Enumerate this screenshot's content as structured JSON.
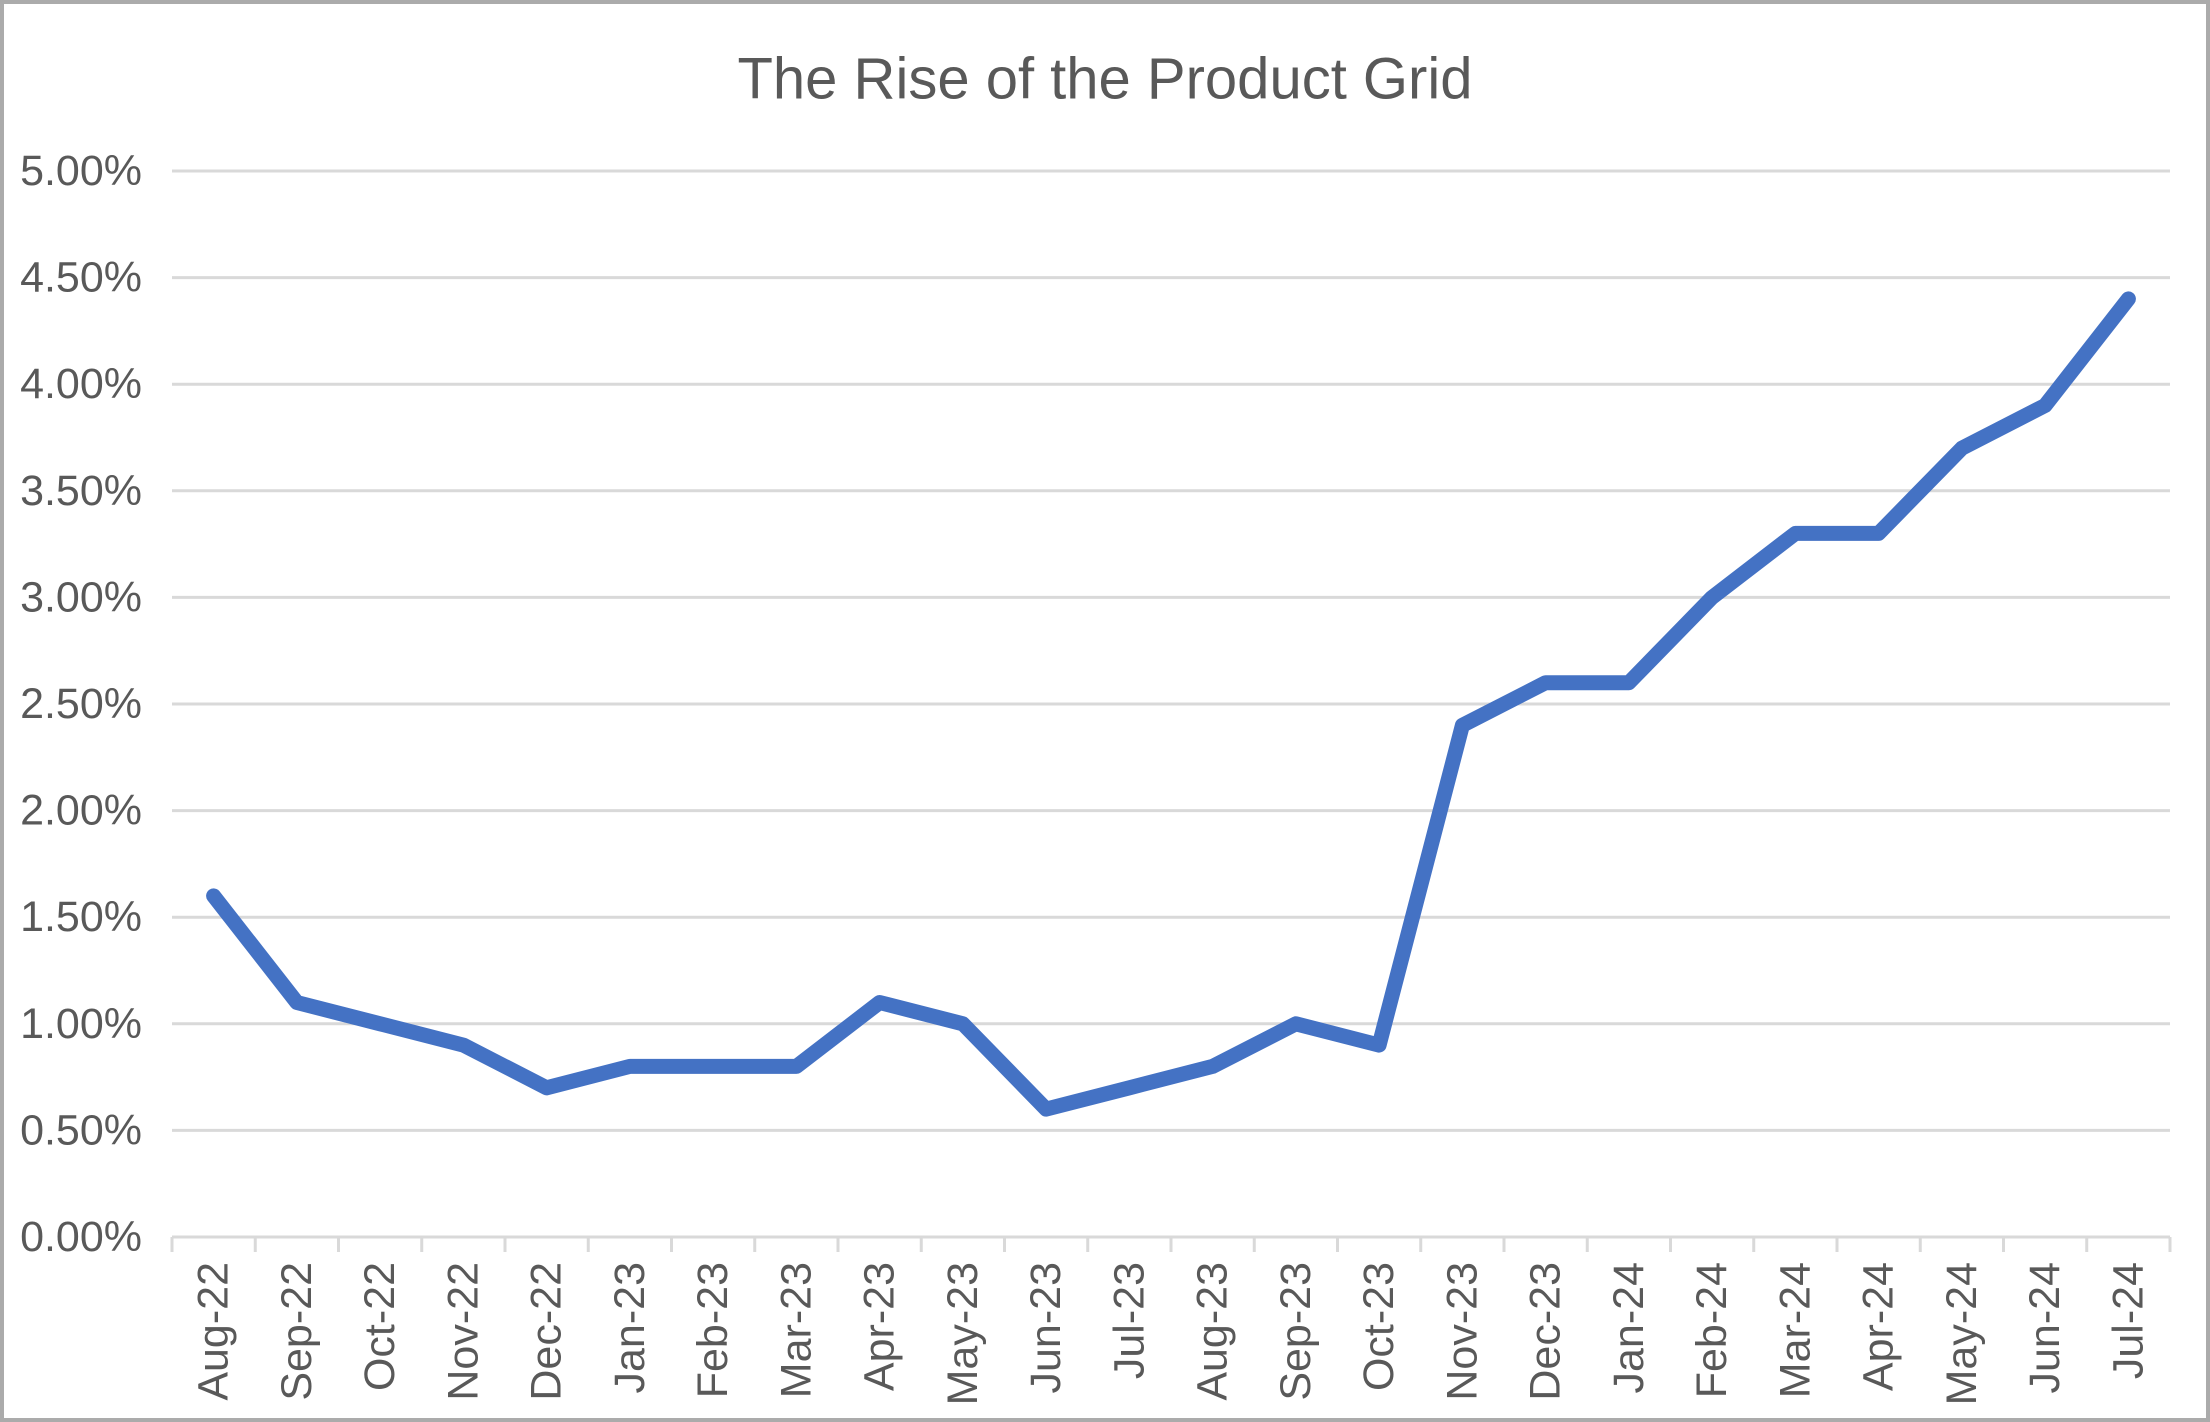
{
  "chart_data": {
    "type": "line",
    "title": "The Rise of the Product Grid",
    "categories": [
      "Aug-22",
      "Sep-22",
      "Oct-22",
      "Nov-22",
      "Dec-22",
      "Jan-23",
      "Feb-23",
      "Mar-23",
      "Apr-23",
      "May-23",
      "Jun-23",
      "Jul-23",
      "Aug-23",
      "Sep-23",
      "Oct-23",
      "Nov-23",
      "Dec-23",
      "Jan-24",
      "Feb-24",
      "Mar-24",
      "Apr-24",
      "May-24",
      "Jun-24",
      "Jul-24"
    ],
    "values": [
      1.6,
      1.1,
      1.0,
      0.9,
      0.7,
      0.8,
      0.8,
      0.8,
      1.1,
      1.0,
      0.6,
      0.7,
      0.8,
      1.0,
      0.9,
      2.4,
      2.6,
      2.6,
      3.0,
      3.3,
      3.3,
      3.7,
      3.9,
      4.4
    ],
    "value_unit": "percent",
    "xlabel": "",
    "ylabel": "",
    "ylim": [
      0,
      5
    ],
    "y_tick_step": 0.5,
    "y_tick_labels": [
      "0.00%",
      "0.50%",
      "1.00%",
      "1.50%",
      "2.00%",
      "2.50%",
      "3.00%",
      "3.50%",
      "4.00%",
      "4.50%",
      "5.00%"
    ],
    "grid": true,
    "legend_position": "none",
    "colors": {
      "series_line": "#4472C4",
      "gridline": "#D9D9D9",
      "axis_line": "#D9D9D9",
      "tick_label": "#595959",
      "title": "#595959",
      "background": "#FFFFFF",
      "frame_border": "#ABABAB"
    }
  }
}
